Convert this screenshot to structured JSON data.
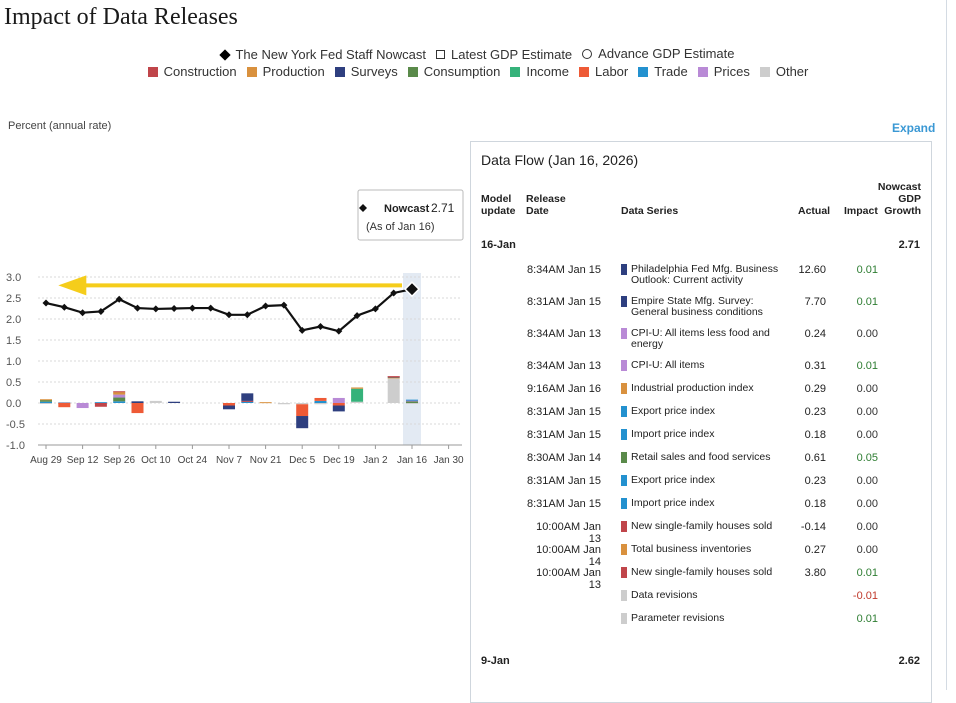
{
  "title": "Impact of Data Releases",
  "legend_top": [
    {
      "label": "The New York Fed Staff Nowcast",
      "marker": "diamond"
    },
    {
      "label": "Latest GDP Estimate",
      "marker": "hollow-square"
    },
    {
      "label": "Advance GDP Estimate",
      "marker": "hollow-circle"
    }
  ],
  "legend_categories": [
    {
      "label": "Construction",
      "color": "#c0454a"
    },
    {
      "label": "Production",
      "color": "#d9913e"
    },
    {
      "label": "Surveys",
      "color": "#2e3f7f"
    },
    {
      "label": "Consumption",
      "color": "#5a8a4a"
    },
    {
      "label": "Income",
      "color": "#35b27a"
    },
    {
      "label": "Labor",
      "color": "#ee5a36"
    },
    {
      "label": "Trade",
      "color": "#2391cf"
    },
    {
      "label": "Prices",
      "color": "#b98ad6"
    },
    {
      "label": "Other",
      "color": "#cdcdcd"
    }
  ],
  "expand_label": "Expand",
  "chart_data": {
    "type": "line",
    "ylabel": "Percent (annual rate)",
    "ylim": [
      -1.0,
      3.0
    ],
    "yticks": [
      "3.0",
      "2.5",
      "2.0",
      "1.5",
      "1.0",
      "0.5",
      "0.0",
      "-0.5",
      "-1.0"
    ],
    "ytick_values": [
      3.0,
      2.5,
      2.0,
      1.5,
      1.0,
      0.5,
      0.0,
      -0.5,
      -1.0
    ],
    "xticks": [
      "Aug 29",
      "Sep 12",
      "Sep 26",
      "Oct 10",
      "Oct 24",
      "Nov 7",
      "Nov 21",
      "Dec 5",
      "Dec 19",
      "Jan 2",
      "Jan 16",
      "Jan 30"
    ],
    "xtick_weeks": [
      0,
      2,
      4,
      6,
      8,
      10,
      12,
      14,
      16,
      18,
      20,
      22
    ],
    "nowcast_weeks": [
      0,
      1,
      2,
      3,
      4,
      5,
      6,
      7,
      8,
      9,
      10,
      11,
      12,
      13,
      14,
      15,
      16,
      17,
      18,
      19,
      20
    ],
    "nowcast_values": [
      2.38,
      2.28,
      2.15,
      2.18,
      2.47,
      2.26,
      2.24,
      2.25,
      2.26,
      2.26,
      2.1,
      2.1,
      2.31,
      2.33,
      1.73,
      1.82,
      1.71,
      2.08,
      2.24,
      2.62,
      2.71
    ],
    "highlight_week": 20,
    "arrow": {
      "from_week": 20,
      "to_week": 1,
      "y": 2.8,
      "color": "#f5cd1b"
    },
    "tooltip": {
      "label": "Nowcast",
      "value": "2.71",
      "sub": "(As of Jan 16)"
    },
    "bars": [
      {
        "week": 0,
        "stack": [
          {
            "cat": "Trade",
            "v": 0.03
          },
          {
            "cat": "Consumption",
            "v": 0.04
          },
          {
            "cat": "Production",
            "v": 0.02
          },
          {
            "cat": "Other",
            "v": -0.02
          }
        ]
      },
      {
        "week": 1,
        "stack": [
          {
            "cat": "Surveys",
            "v": 0.01
          },
          {
            "cat": "Labor",
            "v": -0.1
          }
        ]
      },
      {
        "week": 2,
        "stack": [
          {
            "cat": "Prices",
            "v": -0.12
          }
        ]
      },
      {
        "week": 3,
        "stack": [
          {
            "cat": "Trade",
            "v": 0.02
          },
          {
            "cat": "Construction",
            "v": -0.09
          }
        ]
      },
      {
        "week": 4,
        "stack": [
          {
            "cat": "Trade",
            "v": 0.04
          },
          {
            "cat": "Consumption",
            "v": 0.09
          },
          {
            "cat": "Prices",
            "v": 0.07
          },
          {
            "cat": "Production",
            "v": 0.06
          },
          {
            "cat": "Construction",
            "v": 0.02
          }
        ]
      },
      {
        "week": 5,
        "stack": [
          {
            "cat": "Surveys",
            "v": 0.04
          },
          {
            "cat": "Labor",
            "v": -0.24
          }
        ]
      },
      {
        "week": 6,
        "stack": [
          {
            "cat": "Other",
            "v": 0.05
          }
        ]
      },
      {
        "week": 7,
        "stack": [
          {
            "cat": "Surveys",
            "v": 0.03
          }
        ]
      },
      {
        "week": 10,
        "stack": [
          {
            "cat": "Labor",
            "v": -0.06
          },
          {
            "cat": "Surveys",
            "v": -0.09
          }
        ]
      },
      {
        "week": 11,
        "stack": [
          {
            "cat": "Trade",
            "v": 0.03
          },
          {
            "cat": "Construction",
            "v": 0.02
          },
          {
            "cat": "Surveys",
            "v": 0.18
          }
        ]
      },
      {
        "week": 12,
        "stack": [
          {
            "cat": "Production",
            "v": 0.02
          }
        ]
      },
      {
        "week": 13,
        "stack": [
          {
            "cat": "Other",
            "v": -0.03
          }
        ]
      },
      {
        "week": 14,
        "stack": [
          {
            "cat": "Other",
            "v": -0.03
          },
          {
            "cat": "Labor",
            "v": -0.28
          },
          {
            "cat": "Surveys",
            "v": -0.29
          }
        ]
      },
      {
        "week": 15,
        "stack": [
          {
            "cat": "Trade",
            "v": 0.05
          },
          {
            "cat": "Labor",
            "v": 0.07
          },
          {
            "cat": "Other",
            "v": -0.03
          }
        ]
      },
      {
        "week": 16,
        "stack": [
          {
            "cat": "Prices",
            "v": 0.12
          },
          {
            "cat": "Labor",
            "v": -0.06
          },
          {
            "cat": "Surveys",
            "v": -0.14
          }
        ]
      },
      {
        "week": 17,
        "stack": [
          {
            "cat": "Other",
            "v": 0.03
          },
          {
            "cat": "Income",
            "v": 0.31
          },
          {
            "cat": "Production",
            "v": 0.03
          }
        ]
      },
      {
        "week": 19,
        "stack": [
          {
            "cat": "Other",
            "v": 0.59
          },
          {
            "cat": "Production",
            "v": 0.02
          },
          {
            "cat": "Surveys",
            "v": 0.02
          },
          {
            "cat": "Construction",
            "v": 0.01
          }
        ]
      },
      {
        "week": 20,
        "stack": [
          {
            "cat": "Consumption",
            "v": 0.05
          },
          {
            "cat": "Prices",
            "v": 0.01
          },
          {
            "cat": "Trade",
            "v": 0.02
          },
          {
            "cat": "Other",
            "v": -0.01
          }
        ]
      }
    ]
  },
  "data_flow": {
    "title": "Data Flow (Jan 16, 2026)",
    "headers": {
      "model_update": "Model update",
      "release_date": "Release Date",
      "data_series": "Data Series",
      "actual": "Actual",
      "impact": "Impact",
      "nowcast": "Nowcast GDP Growth"
    },
    "group1": {
      "label": "16-Jan",
      "nowcast": "2.71"
    },
    "rows": [
      {
        "date": "8:34AM Jan 15",
        "series": "Philadelphia Fed Mfg. Business Outlook: Current activity",
        "cat": "Surveys",
        "actual": "12.60",
        "impact": "0.01",
        "sign": "pos"
      },
      {
        "date": "8:31AM Jan 15",
        "series": "Empire State Mfg. Survey: General business conditions",
        "cat": "Surveys",
        "actual": "7.70",
        "impact": "0.01",
        "sign": "pos"
      },
      {
        "date": "8:34AM Jan 13",
        "series": "CPI-U: All items less food and energy",
        "cat": "Prices",
        "actual": "0.24",
        "impact": "0.00",
        "sign": "zero"
      },
      {
        "date": "8:34AM Jan 13",
        "series": "CPI-U: All items",
        "cat": "Prices",
        "actual": "0.31",
        "impact": "0.01",
        "sign": "pos"
      },
      {
        "date": "9:16AM Jan 16",
        "series": "Industrial production index",
        "cat": "Production",
        "actual": "0.29",
        "impact": "0.00",
        "sign": "zero"
      },
      {
        "date": "8:31AM Jan 15",
        "series": "Export price index",
        "cat": "Trade",
        "actual": "0.23",
        "impact": "0.00",
        "sign": "zero"
      },
      {
        "date": "8:31AM Jan 15",
        "series": "Import price index",
        "cat": "Trade",
        "actual": "0.18",
        "impact": "0.00",
        "sign": "zero"
      },
      {
        "date": "8:30AM Jan 14",
        "series": "Retail sales and food services",
        "cat": "Consumption",
        "actual": "0.61",
        "impact": "0.05",
        "sign": "pos"
      },
      {
        "date": "8:31AM Jan 15",
        "series": "Export price index",
        "cat": "Trade",
        "actual": "0.23",
        "impact": "0.00",
        "sign": "zero"
      },
      {
        "date": "8:31AM Jan 15",
        "series": "Import price index",
        "cat": "Trade",
        "actual": "0.18",
        "impact": "0.00",
        "sign": "zero"
      },
      {
        "date": "10:00AM Jan 13",
        "series": "New single-family houses sold",
        "cat": "Construction",
        "actual": "-0.14",
        "impact": "0.00",
        "sign": "zero"
      },
      {
        "date": "10:00AM Jan 14",
        "series": "Total business inventories",
        "cat": "Production",
        "actual": "0.27",
        "impact": "0.00",
        "sign": "zero"
      },
      {
        "date": "10:00AM Jan 13",
        "series": "New single-family houses sold",
        "cat": "Construction",
        "actual": "3.80",
        "impact": "0.01",
        "sign": "pos"
      },
      {
        "date": "",
        "series": "Data revisions",
        "cat": "Other",
        "actual": "",
        "impact": "-0.01",
        "sign": "neg"
      },
      {
        "date": "",
        "series": "Parameter revisions",
        "cat": "Other",
        "actual": "",
        "impact": "0.01",
        "sign": "pos"
      }
    ],
    "group2": {
      "label": "9-Jan",
      "nowcast": "2.62"
    }
  }
}
